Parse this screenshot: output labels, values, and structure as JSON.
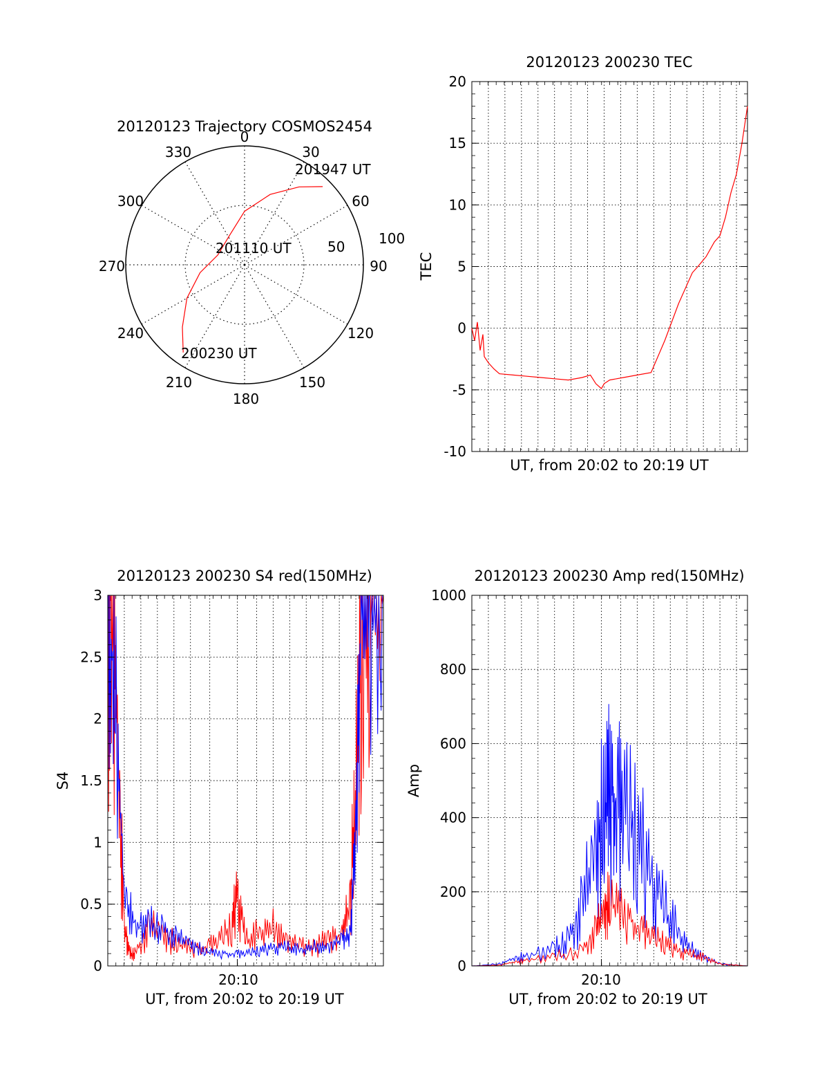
{
  "charts": {
    "colors": {
      "red": "#ff0000",
      "blue": "#0000ff",
      "axis": "#000000",
      "grid": "#000000"
    },
    "polar": {
      "title": "20120123 Trajectory COSMOS2454",
      "azimuth_labels": [
        "0",
        "30",
        "60",
        "90",
        "120",
        "150",
        "180",
        "210",
        "240",
        "270",
        "300",
        "330"
      ],
      "radial_labels": [
        "50",
        "100"
      ],
      "annotations": {
        "start": "200230 UT",
        "mid": "201110 UT",
        "end": "201947 UT"
      }
    },
    "tec": {
      "title": "20120123 200230 TEC",
      "ylabel": "TEC",
      "xlabel": "UT, from 20:02 to 20:19 UT",
      "yticks": [
        "-10",
        "-5",
        "0",
        "5",
        "10",
        "15",
        "20"
      ]
    },
    "s4": {
      "title": "20120123 200230 S4 red(150MHz)",
      "ylabel": "S4",
      "xlabel": "UT, from 20:02 to 20:19 UT",
      "xtick": "20:10",
      "yticks": [
        "0",
        "0.5",
        "1",
        "1.5",
        "2",
        "2.5",
        "3"
      ]
    },
    "amp": {
      "title": "20120123 200230 Amp red(150MHz)",
      "ylabel": "Amp",
      "xlabel": "UT, from 20:02 to 20:19 UT",
      "xtick": "20:10",
      "yticks": [
        "0",
        "200",
        "400",
        "600",
        "800",
        "1000"
      ]
    }
  },
  "chart_data": [
    {
      "type": "polar",
      "title": "20120123 Trajectory COSMOS2454",
      "theta_axis": "azimuth (deg, clockwise from north)",
      "radial_range": [
        0,
        100
      ],
      "series": [
        {
          "azimuth": [
            215,
            225,
            240,
            260,
            290,
            330,
            0,
            20,
            35,
            45
          ],
          "radius": [
            90,
            74,
            56,
            38,
            24,
            27,
            45,
            63,
            80,
            93
          ]
        }
      ],
      "annotations": [
        "200230 UT",
        "201110 UT",
        "201947 UT"
      ]
    },
    {
      "type": "line",
      "title": "20120123 200230 TEC",
      "xlabel": "UT, from 20:02 to 20:19 UT",
      "ylabel": "TEC",
      "xlim": [
        0,
        1
      ],
      "ylim": [
        -10,
        20
      ],
      "series": [
        {
          "x": [
            0.0,
            0.01,
            0.02,
            0.03,
            0.04,
            0.045,
            0.06,
            0.08,
            0.1,
            0.15,
            0.2,
            0.25,
            0.3,
            0.35,
            0.4,
            0.43,
            0.45,
            0.47,
            0.48,
            0.5,
            0.55,
            0.6,
            0.65,
            0.7,
            0.75,
            0.8,
            0.82,
            0.85,
            0.88,
            0.9,
            0.92,
            0.94,
            0.96,
            0.98,
            1.0
          ],
          "y": [
            0,
            -1,
            0.5,
            -1.8,
            -0.5,
            -2.3,
            -2.8,
            -3.3,
            -3.7,
            -3.8,
            -3.9,
            -4.0,
            -4.1,
            -4.2,
            -4.0,
            -3.8,
            -4.5,
            -4.9,
            -4.5,
            -4.2,
            -4.0,
            -3.8,
            -3.6,
            -1.0,
            2.0,
            4.5,
            5.0,
            5.8,
            7.0,
            7.5,
            9.0,
            11.0,
            12.5,
            15.0,
            18.0
          ]
        }
      ]
    },
    {
      "type": "line",
      "title": "20120123 200230 S4 red(150MHz)",
      "xlabel": "UT, from 20:02 to 20:19 UT",
      "ylabel": "S4",
      "xlim": [
        0,
        1
      ],
      "ylim": [
        0,
        3
      ],
      "series": [
        {
          "x": [
            0.0,
            0.02,
            0.04,
            0.06,
            0.08,
            0.1,
            0.15,
            0.2,
            0.25,
            0.3,
            0.35,
            0.4,
            0.45,
            0.47,
            0.5,
            0.55,
            0.6,
            0.65,
            0.7,
            0.75,
            0.8,
            0.85,
            0.88,
            0.9,
            0.92,
            0.95,
            1.0
          ],
          "y": [
            3.0,
            3.0,
            1.5,
            0.3,
            0.1,
            0.1,
            0.3,
            0.25,
            0.18,
            0.15,
            0.15,
            0.2,
            0.3,
            0.6,
            0.2,
            0.25,
            0.3,
            0.2,
            0.15,
            0.15,
            0.2,
            0.25,
            0.5,
            1.5,
            3.0,
            3.0,
            3.0
          ]
        },
        {
          "x": [
            0.0,
            0.03,
            0.06,
            0.1,
            0.15,
            0.2,
            0.25,
            0.3,
            0.35,
            0.4,
            0.45,
            0.5,
            0.55,
            0.6,
            0.65,
            0.7,
            0.75,
            0.8,
            0.85,
            0.88,
            0.9,
            0.92,
            0.95,
            1.0
          ],
          "y": [
            3.0,
            2.0,
            0.6,
            0.3,
            0.35,
            0.3,
            0.22,
            0.18,
            0.12,
            0.1,
            0.1,
            0.1,
            0.12,
            0.15,
            0.15,
            0.12,
            0.15,
            0.15,
            0.2,
            0.25,
            1.0,
            3.0,
            3.0,
            3.0
          ]
        }
      ]
    },
    {
      "type": "line",
      "title": "20120123 200230 Amp red(150MHz)",
      "xlabel": "UT, from 20:02 to 20:19 UT",
      "ylabel": "Amp",
      "xlim": [
        0,
        1
      ],
      "ylim": [
        0,
        1000
      ],
      "series": [
        {
          "x": [
            0.0,
            0.1,
            0.15,
            0.2,
            0.3,
            0.4,
            0.45,
            0.48,
            0.5,
            0.55,
            0.6,
            0.65,
            0.7,
            0.75,
            0.8,
            0.85,
            0.9,
            1.0
          ],
          "y": [
            0,
            2,
            10,
            15,
            25,
            40,
            90,
            140,
            180,
            140,
            110,
            80,
            60,
            40,
            30,
            20,
            5,
            0
          ]
        },
        {
          "x": [
            0.0,
            0.1,
            0.15,
            0.2,
            0.3,
            0.35,
            0.4,
            0.45,
            0.48,
            0.5,
            0.52,
            0.55,
            0.6,
            0.65,
            0.7,
            0.75,
            0.8,
            0.85,
            0.9,
            1.0
          ],
          "y": [
            0,
            5,
            20,
            25,
            45,
            70,
            150,
            300,
            420,
            480,
            450,
            420,
            330,
            240,
            150,
            80,
            40,
            20,
            5,
            0
          ]
        }
      ]
    }
  ]
}
